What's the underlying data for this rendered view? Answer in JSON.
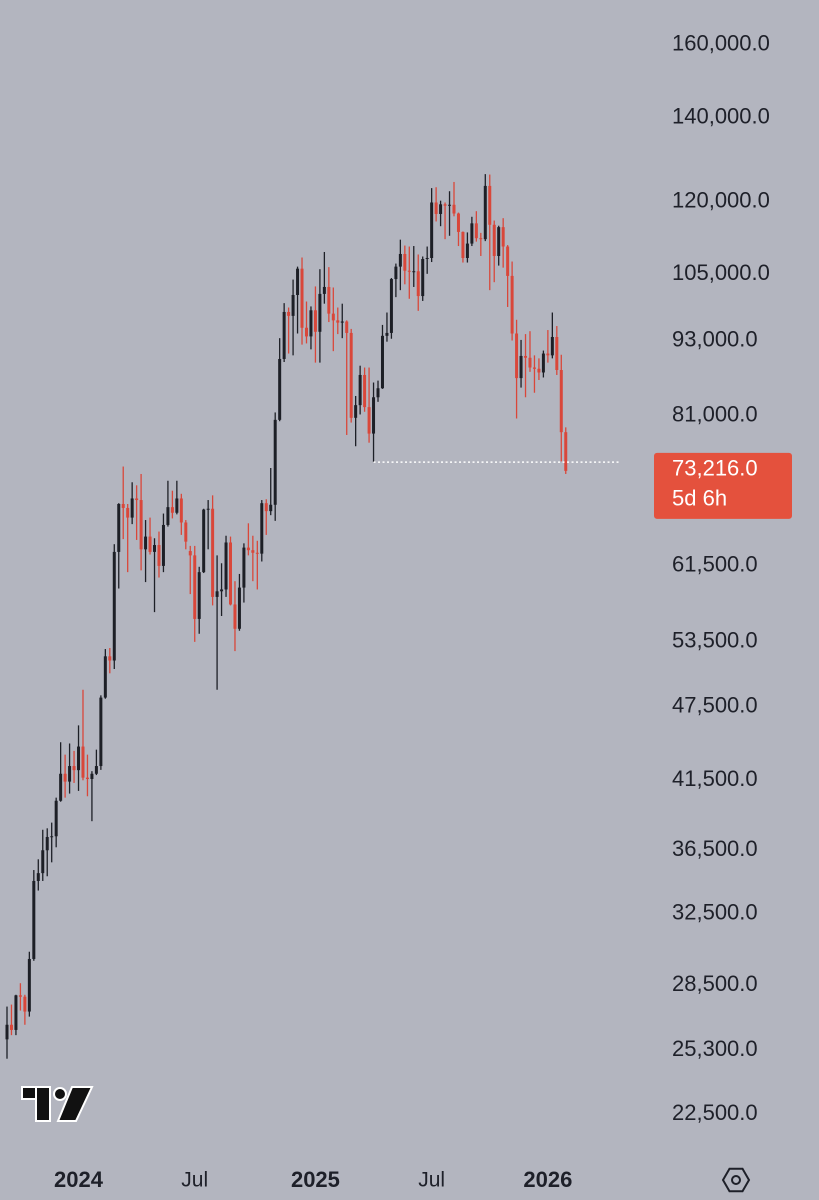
{
  "chart_data": {
    "type": "candlestick",
    "log_scale": true,
    "ylim": [
      21060,
      173700
    ],
    "yticks": [
      {
        "value": 160000,
        "label": "160,000.0"
      },
      {
        "value": 140000,
        "label": "140,000.0"
      },
      {
        "value": 120000,
        "label": "120,000.0"
      },
      {
        "value": 105000,
        "label": "105,000.0"
      },
      {
        "value": 93000,
        "label": "93,000.0"
      },
      {
        "value": 81000,
        "label": "81,000.0"
      },
      {
        "value": 61500,
        "label": "61,500.0"
      },
      {
        "value": 53500,
        "label": "53,500.0"
      },
      {
        "value": 47500,
        "label": "47,500.0"
      },
      {
        "value": 41500,
        "label": "41,500.0"
      },
      {
        "value": 36500,
        "label": "36,500.0"
      },
      {
        "value": 32500,
        "label": "32,500.0"
      },
      {
        "value": 28500,
        "label": "28,500.0"
      },
      {
        "value": 25300,
        "label": "25,300.0"
      },
      {
        "value": 22500,
        "label": "22,500.0"
      }
    ],
    "xticks": [
      {
        "value": 16,
        "label": "2024"
      },
      {
        "value": 42,
        "label": "Jul"
      },
      {
        "value": 69,
        "label": "2025"
      },
      {
        "value": 95,
        "label": "Jul"
      },
      {
        "value": 121,
        "label": "2026"
      }
    ],
    "up_color": "#1d1f26",
    "down_color": "#d9473a",
    "last_price_label": "73,216.0",
    "countdown": "5d 6h",
    "last_price_color": "#e4513d",
    "hline": 74400,
    "categories": [
      null,
      null,
      null,
      null,
      null,
      null,
      null,
      null,
      null,
      null,
      null,
      null,
      null,
      null,
      null,
      null,
      null,
      null,
      null,
      null,
      null,
      null,
      null,
      null,
      null,
      null,
      null,
      null,
      null,
      null,
      null,
      null,
      null,
      null,
      null,
      null,
      null,
      null,
      null,
      null,
      null,
      null,
      null,
      null,
      null,
      null,
      null,
      null,
      null,
      null,
      null,
      null,
      null,
      null,
      null,
      null,
      null,
      null,
      null,
      null,
      null,
      null,
      null,
      null,
      null,
      null,
      null,
      null,
      null,
      null,
      null,
      null,
      null,
      null,
      null,
      null,
      null,
      null,
      null,
      null,
      null,
      null,
      null,
      null,
      null,
      null,
      null,
      null,
      null,
      null,
      null,
      null,
      null,
      null,
      null,
      null,
      null,
      null,
      null,
      null,
      null,
      null,
      null,
      null,
      null,
      null,
      null,
      null,
      null,
      null,
      null,
      null,
      null,
      null,
      null,
      null,
      null,
      null,
      null,
      null,
      null,
      null,
      null,
      null,
      null,
      null
    ],
    "open": [
      25800,
      26500,
      26250,
      27970,
      27900,
      27150,
      29900,
      34500,
      35000,
      36500,
      37400,
      37450,
      39970,
      42000,
      41400,
      42600,
      42280,
      44150,
      41700,
      41600,
      42000,
      42600,
      48300,
      52100,
      51700,
      63100,
      68900,
      68400,
      67200,
      69600,
      69400,
      63400,
      64900,
      63100,
      63900,
      61500,
      66300,
      68500,
      67800,
      69600,
      66600,
      63200,
      62700,
      55800,
      60800,
      68200,
      68300,
      58100,
      58700,
      58900,
      64200,
      57300,
      54800,
      59100,
      63600,
      63300,
      63000,
      62900,
      69000,
      68000,
      68800,
      80400,
      89900,
      98000,
      97300,
      101100,
      106100,
      95200,
      93700,
      98300,
      94500,
      101300,
      102600,
      97700,
      96500,
      96100,
      96300,
      94300,
      80700,
      82600,
      87300,
      82300,
      78400,
      83800,
      85200,
      93800,
      94300,
      104100,
      106500,
      109000,
      105700,
      105600,
      105600,
      100900,
      108000,
      108200,
      119800,
      117300,
      119400,
      119100,
      119300,
      117400,
      113500,
      108200,
      111100,
      115300,
      112200,
      112000,
      123500,
      115000,
      108600,
      114500,
      110500,
      104700,
      94200,
      86800,
      90400,
      90100,
      88500,
      88300,
      87700,
      90800,
      90500,
      93600,
      88100,
      78600
    ],
    "high": [
      27400,
      27500,
      28000,
      28600,
      28000,
      30300,
      35200,
      35900,
      37900,
      38000,
      38400,
      40200,
      44500,
      43500,
      44400,
      43800,
      45900,
      49000,
      43500,
      42200,
      43900,
      48500,
      52800,
      52900,
      64000,
      69000,
      73800,
      68900,
      71700,
      71300,
      72800,
      66900,
      67200,
      64700,
      65500,
      67700,
      71900,
      70600,
      71900,
      70200,
      66900,
      63800,
      63800,
      61400,
      68300,
      69400,
      70000,
      62700,
      61800,
      65000,
      64900,
      59800,
      60600,
      64100,
      66500,
      65000,
      64400,
      69400,
      69500,
      73600,
      81500,
      93400,
      99600,
      98800,
      104000,
      106500,
      108300,
      99900,
      99000,
      102700,
      106000,
      109400,
      106400,
      102500,
      98800,
      99500,
      96500,
      95000,
      84000,
      88800,
      88500,
      88500,
      86100,
      86400,
      95700,
      97900,
      104300,
      107100,
      111900,
      110700,
      110500,
      110600,
      108900,
      108500,
      110500,
      123000,
      123200,
      120200,
      119800,
      122300,
      124400,
      117600,
      113600,
      113400,
      116700,
      117900,
      113300,
      126200,
      126100,
      115900,
      114800,
      116400,
      110800,
      107500,
      96600,
      93100,
      94100,
      94600,
      90500,
      90000,
      91300,
      94800,
      97900,
      95500,
      90600,
      79300
    ],
    "low": [
      24900,
      26000,
      26000,
      27200,
      26500,
      26900,
      29800,
      33900,
      34500,
      34800,
      35700,
      36700,
      39900,
      40200,
      40500,
      41300,
      40700,
      41500,
      40300,
      38500,
      41900,
      42300,
      48200,
      50500,
      50900,
      59000,
      64600,
      60800,
      66400,
      64500,
      61000,
      59700,
      62800,
      56500,
      60200,
      60800,
      66100,
      67100,
      67600,
      65100,
      63400,
      58400,
      53500,
      54300,
      60700,
      63400,
      57200,
      49000,
      56100,
      58100,
      57200,
      52600,
      54600,
      57500,
      62700,
      59800,
      58900,
      62000,
      65100,
      67500,
      66800,
      80200,
      89400,
      90800,
      90500,
      94200,
      92300,
      92500,
      91500,
      89300,
      89300,
      99500,
      96200,
      91200,
      94100,
      93400,
      78200,
      80000,
      76600,
      81200,
      81600,
      77100,
      74400,
      83100,
      85100,
      92800,
      93300,
      100700,
      102000,
      103100,
      100400,
      102600,
      98200,
      100000,
      105100,
      107400,
      115700,
      114700,
      112000,
      112700,
      116800,
      110600,
      107300,
      107300,
      110600,
      111500,
      108600,
      111600,
      102000,
      103500,
      106700,
      106300,
      98900,
      93000,
      80600,
      85300,
      83800,
      87800,
      84500,
      86500,
      86900,
      89300,
      90000,
      87300,
      74500,
      72800
    ],
    "close": [
      26500,
      26250,
      27970,
      27900,
      27150,
      29900,
      34500,
      35000,
      36500,
      37400,
      37450,
      39970,
      42000,
      41400,
      42600,
      42280,
      44150,
      41700,
      41600,
      42000,
      42600,
      48300,
      52100,
      51700,
      63100,
      68900,
      68400,
      67200,
      69600,
      69400,
      63400,
      64900,
      63100,
      63900,
      61500,
      66300,
      68500,
      67800,
      69600,
      66600,
      64300,
      62700,
      55800,
      60800,
      68200,
      68300,
      58100,
      58700,
      58900,
      64200,
      57300,
      54800,
      59100,
      63600,
      63300,
      63000,
      62900,
      69000,
      68000,
      68800,
      80400,
      89900,
      98000,
      97300,
      101100,
      106100,
      95200,
      93700,
      98300,
      94500,
      101300,
      102600,
      97700,
      96500,
      96100,
      96300,
      94300,
      80700,
      82600,
      87300,
      82300,
      78400,
      83800,
      85200,
      93800,
      94300,
      104100,
      106500,
      109000,
      105700,
      105600,
      105600,
      100900,
      108000,
      108200,
      119800,
      117300,
      119400,
      119100,
      119300,
      117400,
      113500,
      108200,
      111100,
      115300,
      112200,
      112000,
      123500,
      115000,
      108600,
      114500,
      110500,
      104700,
      94200,
      86800,
      90400,
      90100,
      88500,
      88300,
      87700,
      90800,
      90500,
      93600,
      88100,
      78600,
      73216
    ]
  }
}
